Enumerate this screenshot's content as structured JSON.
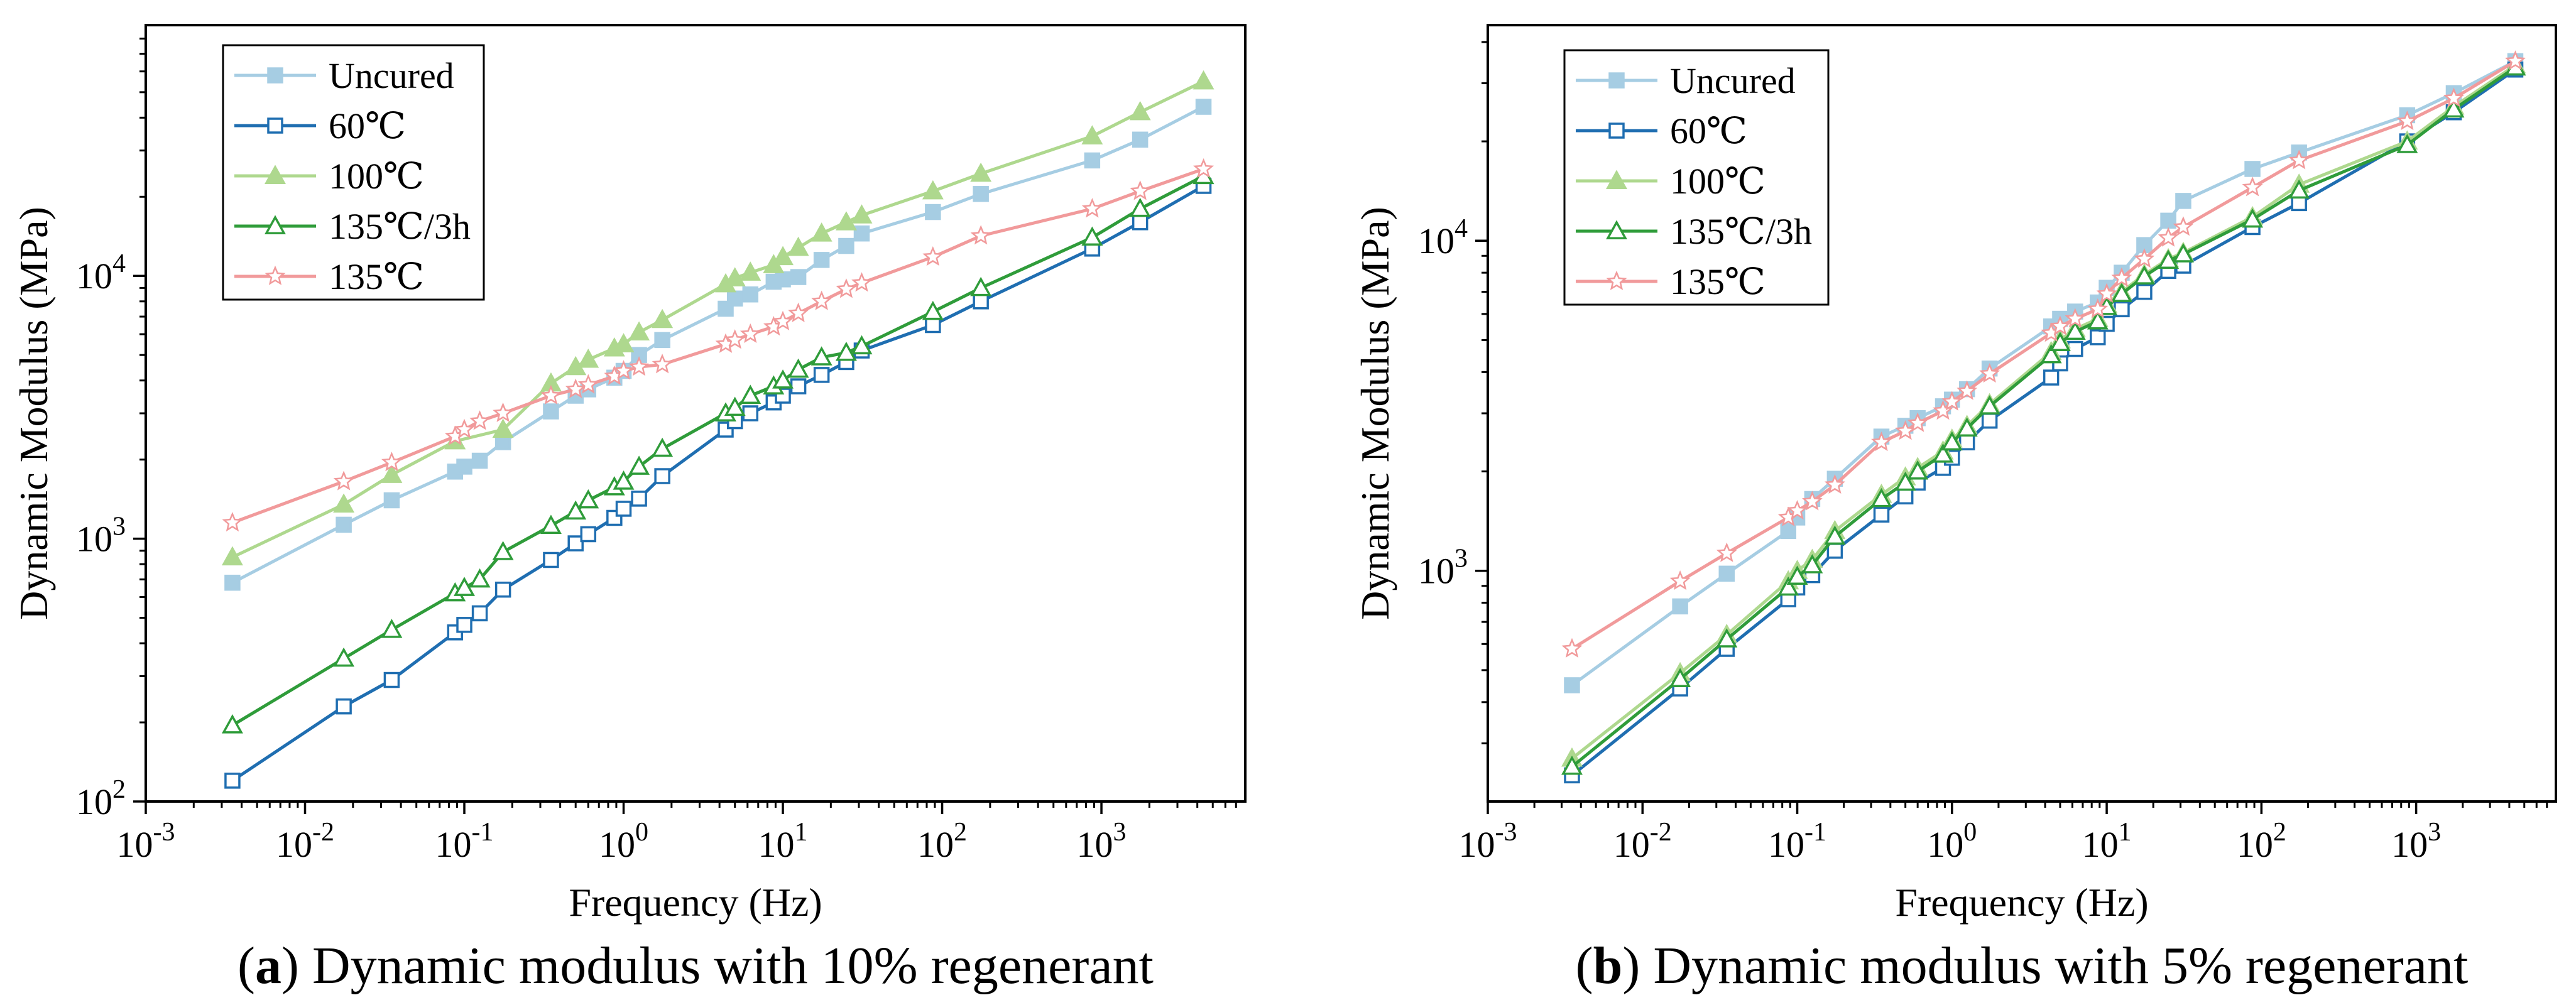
{
  "chart_data": [
    {
      "type": "line",
      "panel_id": "a",
      "caption_label": "a",
      "caption_text": "Dynamic modulus with 10% regenerant",
      "xlabel": "Frequency (Hz)",
      "ylabel": "Dynamic Modulus (MPa)",
      "xscale": "log",
      "yscale": "log",
      "xlim": [
        0.001,
        8000
      ],
      "ylim": [
        100,
        90000
      ],
      "xticks": [
        {
          "value": 0.001,
          "base": "10",
          "exp": "-3"
        },
        {
          "value": 0.01,
          "base": "10",
          "exp": "-2"
        },
        {
          "value": 0.1,
          "base": "10",
          "exp": "-1"
        },
        {
          "value": 1,
          "base": "10",
          "exp": "0"
        },
        {
          "value": 10,
          "base": "10",
          "exp": "1"
        },
        {
          "value": 100,
          "base": "10",
          "exp": "2"
        },
        {
          "value": 1000,
          "base": "10",
          "exp": "3"
        }
      ],
      "yticks": [
        {
          "value": 100,
          "base": "10",
          "exp": "2"
        },
        {
          "value": 1000,
          "base": "10",
          "exp": "3"
        },
        {
          "value": 10000,
          "base": "10",
          "exp": "4"
        }
      ],
      "legend_position": "top-left",
      "series": [
        {
          "name": "Uncured",
          "color": "#a6cde3",
          "marker": "square-filled",
          "x": [
            0.0035,
            0.0175,
            0.035,
            0.0875,
            0.1,
            0.125,
            0.175,
            0.35,
            0.5,
            0.6,
            0.875,
            1,
            1.25,
            1.75,
            4.375,
            5,
            6.25,
            8.75,
            10,
            12.5,
            17.5,
            25,
            31.25,
            87.5,
            175,
            875,
            1750,
            4375
          ],
          "y": [
            680,
            1130,
            1400,
            1800,
            1880,
            1980,
            2330,
            3050,
            3500,
            3700,
            4100,
            4350,
            5000,
            5700,
            7500,
            8200,
            8500,
            9500,
            9700,
            9900,
            11500,
            13000,
            14500,
            17500,
            20500,
            27500,
            33000,
            44000
          ]
        },
        {
          "name": "60℃",
          "color": "#1f6eb1",
          "marker": "square-open",
          "x": [
            0.0035,
            0.0175,
            0.035,
            0.0875,
            0.1,
            0.125,
            0.175,
            0.35,
            0.5,
            0.6,
            0.875,
            1,
            1.25,
            1.75,
            4.375,
            5,
            6.25,
            8.75,
            10,
            12.5,
            17.5,
            25,
            31.25,
            87.5,
            175,
            875,
            1750,
            4375
          ],
          "y": [
            120,
            230,
            290,
            440,
            470,
            520,
            640,
            830,
            960,
            1040,
            1200,
            1300,
            1420,
            1730,
            2600,
            2800,
            3000,
            3300,
            3500,
            3800,
            4200,
            4700,
            5200,
            6500,
            8000,
            12700,
            16000,
            22000
          ]
        },
        {
          "name": "100℃",
          "color": "#aed88e",
          "marker": "triangle-filled",
          "x": [
            0.0035,
            0.0175,
            0.035,
            0.0875,
            0.175,
            0.35,
            0.5,
            0.6,
            0.875,
            1,
            1.25,
            1.75,
            4.375,
            5,
            6.25,
            8.75,
            10,
            12.5,
            17.5,
            25,
            31.25,
            87.5,
            175,
            875,
            1750,
            4375
          ],
          "y": [
            850,
            1350,
            1750,
            2350,
            2600,
            3900,
            4500,
            4800,
            5300,
            5500,
            6100,
            6800,
            9300,
            9800,
            10300,
            11000,
            11800,
            12800,
            14500,
            16000,
            17000,
            21000,
            24500,
            34000,
            42000,
            55000
          ]
        },
        {
          "name": "135℃/3h",
          "color": "#2f9c3a",
          "marker": "triangle-open",
          "x": [
            0.0035,
            0.0175,
            0.035,
            0.0875,
            0.1,
            0.125,
            0.175,
            0.35,
            0.5,
            0.6,
            0.875,
            1,
            1.25,
            1.75,
            4.375,
            5,
            6.25,
            8.75,
            10,
            12.5,
            17.5,
            25,
            31.25,
            87.5,
            175,
            875,
            1750,
            4375
          ],
          "y": [
            195,
            350,
            450,
            620,
            650,
            700,
            890,
            1120,
            1270,
            1400,
            1570,
            1650,
            1880,
            2200,
            3000,
            3150,
            3500,
            3800,
            4000,
            4400,
            4900,
            5100,
            5400,
            7300,
            9000,
            14000,
            18000,
            24000
          ]
        },
        {
          "name": "135℃",
          "color": "#f19a9b",
          "marker": "star-open",
          "x": [
            0.0035,
            0.0175,
            0.035,
            0.0875,
            0.1,
            0.125,
            0.175,
            0.35,
            0.5,
            0.6,
            0.875,
            1,
            1.25,
            1.75,
            4.375,
            5,
            6.25,
            8.75,
            10,
            12.5,
            17.5,
            25,
            31.25,
            87.5,
            175,
            875,
            1750,
            4375
          ],
          "y": [
            1150,
            1650,
            1950,
            2450,
            2600,
            2800,
            3000,
            3500,
            3700,
            3850,
            4150,
            4350,
            4500,
            4600,
            5500,
            5700,
            6000,
            6400,
            6700,
            7200,
            8000,
            8900,
            9400,
            11800,
            14200,
            18000,
            21000,
            25500
          ]
        }
      ]
    },
    {
      "type": "line",
      "panel_id": "b",
      "caption_label": "b",
      "caption_text": "Dynamic modulus with 5% regenerant",
      "xlabel": "Frequency (Hz)",
      "ylabel": "Dynamic Modulus (MPa)",
      "xscale": "log",
      "yscale": "log",
      "xlim": [
        0.001,
        8000
      ],
      "ylim": [
        200,
        45000
      ],
      "xticks": [
        {
          "value": 0.001,
          "base": "10",
          "exp": "-3"
        },
        {
          "value": 0.01,
          "base": "10",
          "exp": "-2"
        },
        {
          "value": 0.1,
          "base": "10",
          "exp": "-1"
        },
        {
          "value": 1,
          "base": "10",
          "exp": "0"
        },
        {
          "value": 10,
          "base": "10",
          "exp": "1"
        },
        {
          "value": 100,
          "base": "10",
          "exp": "2"
        },
        {
          "value": 1000,
          "base": "10",
          "exp": "3"
        }
      ],
      "yticks": [
        {
          "value": 1000,
          "base": "10",
          "exp": "3"
        },
        {
          "value": 10000,
          "base": "10",
          "exp": "4"
        }
      ],
      "legend_position": "top-left",
      "series": [
        {
          "name": "Uncured",
          "color": "#a6cde3",
          "marker": "square-filled",
          "x": [
            0.0035,
            0.0175,
            0.035,
            0.0875,
            0.1,
            0.125,
            0.175,
            0.35,
            0.5,
            0.6,
            0.875,
            1,
            1.25,
            1.75,
            4.375,
            5,
            6.25,
            8.75,
            10,
            12.5,
            17.5,
            25,
            31.25,
            87.5,
            175,
            875,
            1750,
            4375
          ],
          "y": [
            450,
            780,
            980,
            1320,
            1450,
            1650,
            1900,
            2550,
            2750,
            2900,
            3150,
            3300,
            3550,
            4100,
            5500,
            5800,
            6100,
            6500,
            7200,
            8000,
            9700,
            11500,
            13200,
            16500,
            18500,
            24000,
            28000,
            35000
          ]
        },
        {
          "name": "60℃",
          "color": "#1f6eb1",
          "marker": "square-open",
          "x": [
            0.0035,
            0.0175,
            0.035,
            0.0875,
            0.1,
            0.125,
            0.175,
            0.35,
            0.5,
            0.6,
            0.875,
            1,
            1.25,
            1.75,
            4.375,
            5,
            6.25,
            8.75,
            10,
            12.5,
            17.5,
            25,
            31.25,
            87.5,
            175,
            875,
            1750,
            4375
          ],
          "y": [
            240,
            440,
            580,
            820,
            890,
            970,
            1150,
            1480,
            1680,
            1850,
            2050,
            2200,
            2450,
            2850,
            3850,
            4250,
            4700,
            5100,
            5600,
            6200,
            7000,
            8100,
            8400,
            11000,
            13000,
            20000,
            24500,
            33000
          ]
        },
        {
          "name": "100℃",
          "color": "#aed88e",
          "marker": "triangle-filled",
          "x": [
            0.0035,
            0.0175,
            0.035,
            0.0875,
            0.1,
            0.125,
            0.175,
            0.35,
            0.5,
            0.6,
            0.875,
            1,
            1.25,
            1.75,
            4.375,
            5,
            6.25,
            8.75,
            10,
            12.5,
            17.5,
            25,
            31.25,
            87.5,
            175,
            875,
            1750,
            4375
          ],
          "y": [
            270,
            490,
            640,
            930,
            1000,
            1080,
            1320,
            1700,
            1920,
            2050,
            2300,
            2500,
            2750,
            3200,
            4600,
            5000,
            5400,
            5800,
            6400,
            7000,
            7900,
            8800,
            9200,
            11800,
            14800,
            20000,
            25500,
            34000
          ]
        },
        {
          "name": "135℃/3h",
          "color": "#2f9c3a",
          "marker": "triangle-open",
          "x": [
            0.0035,
            0.0175,
            0.035,
            0.0875,
            0.1,
            0.125,
            0.175,
            0.35,
            0.5,
            0.6,
            0.875,
            1,
            1.25,
            1.75,
            4.375,
            5,
            6.25,
            8.75,
            10,
            12.5,
            17.5,
            25,
            31.25,
            87.5,
            175,
            875,
            1750,
            4375
          ],
          "y": [
            255,
            470,
            620,
            890,
            960,
            1040,
            1270,
            1650,
            1850,
            2000,
            2250,
            2450,
            2700,
            3150,
            4500,
            4900,
            5300,
            5700,
            6300,
            6900,
            7800,
            8700,
            9100,
            11600,
            14200,
            19500,
            25000,
            33500
          ]
        },
        {
          "name": "135℃",
          "color": "#f19a9b",
          "marker": "star-open",
          "x": [
            0.0035,
            0.0175,
            0.035,
            0.0875,
            0.1,
            0.125,
            0.175,
            0.35,
            0.5,
            0.6,
            0.875,
            1,
            1.25,
            1.75,
            4.375,
            5,
            6.25,
            8.75,
            10,
            12.5,
            17.5,
            25,
            31.25,
            87.5,
            175,
            875,
            1750,
            4375
          ],
          "y": [
            580,
            930,
            1130,
            1450,
            1520,
            1620,
            1820,
            2450,
            2650,
            2800,
            3050,
            3250,
            3500,
            3950,
            5250,
            5500,
            5800,
            6200,
            6900,
            7700,
            8800,
            10200,
            11000,
            14500,
            17500,
            23000,
            27000,
            35000
          ]
        }
      ]
    }
  ]
}
